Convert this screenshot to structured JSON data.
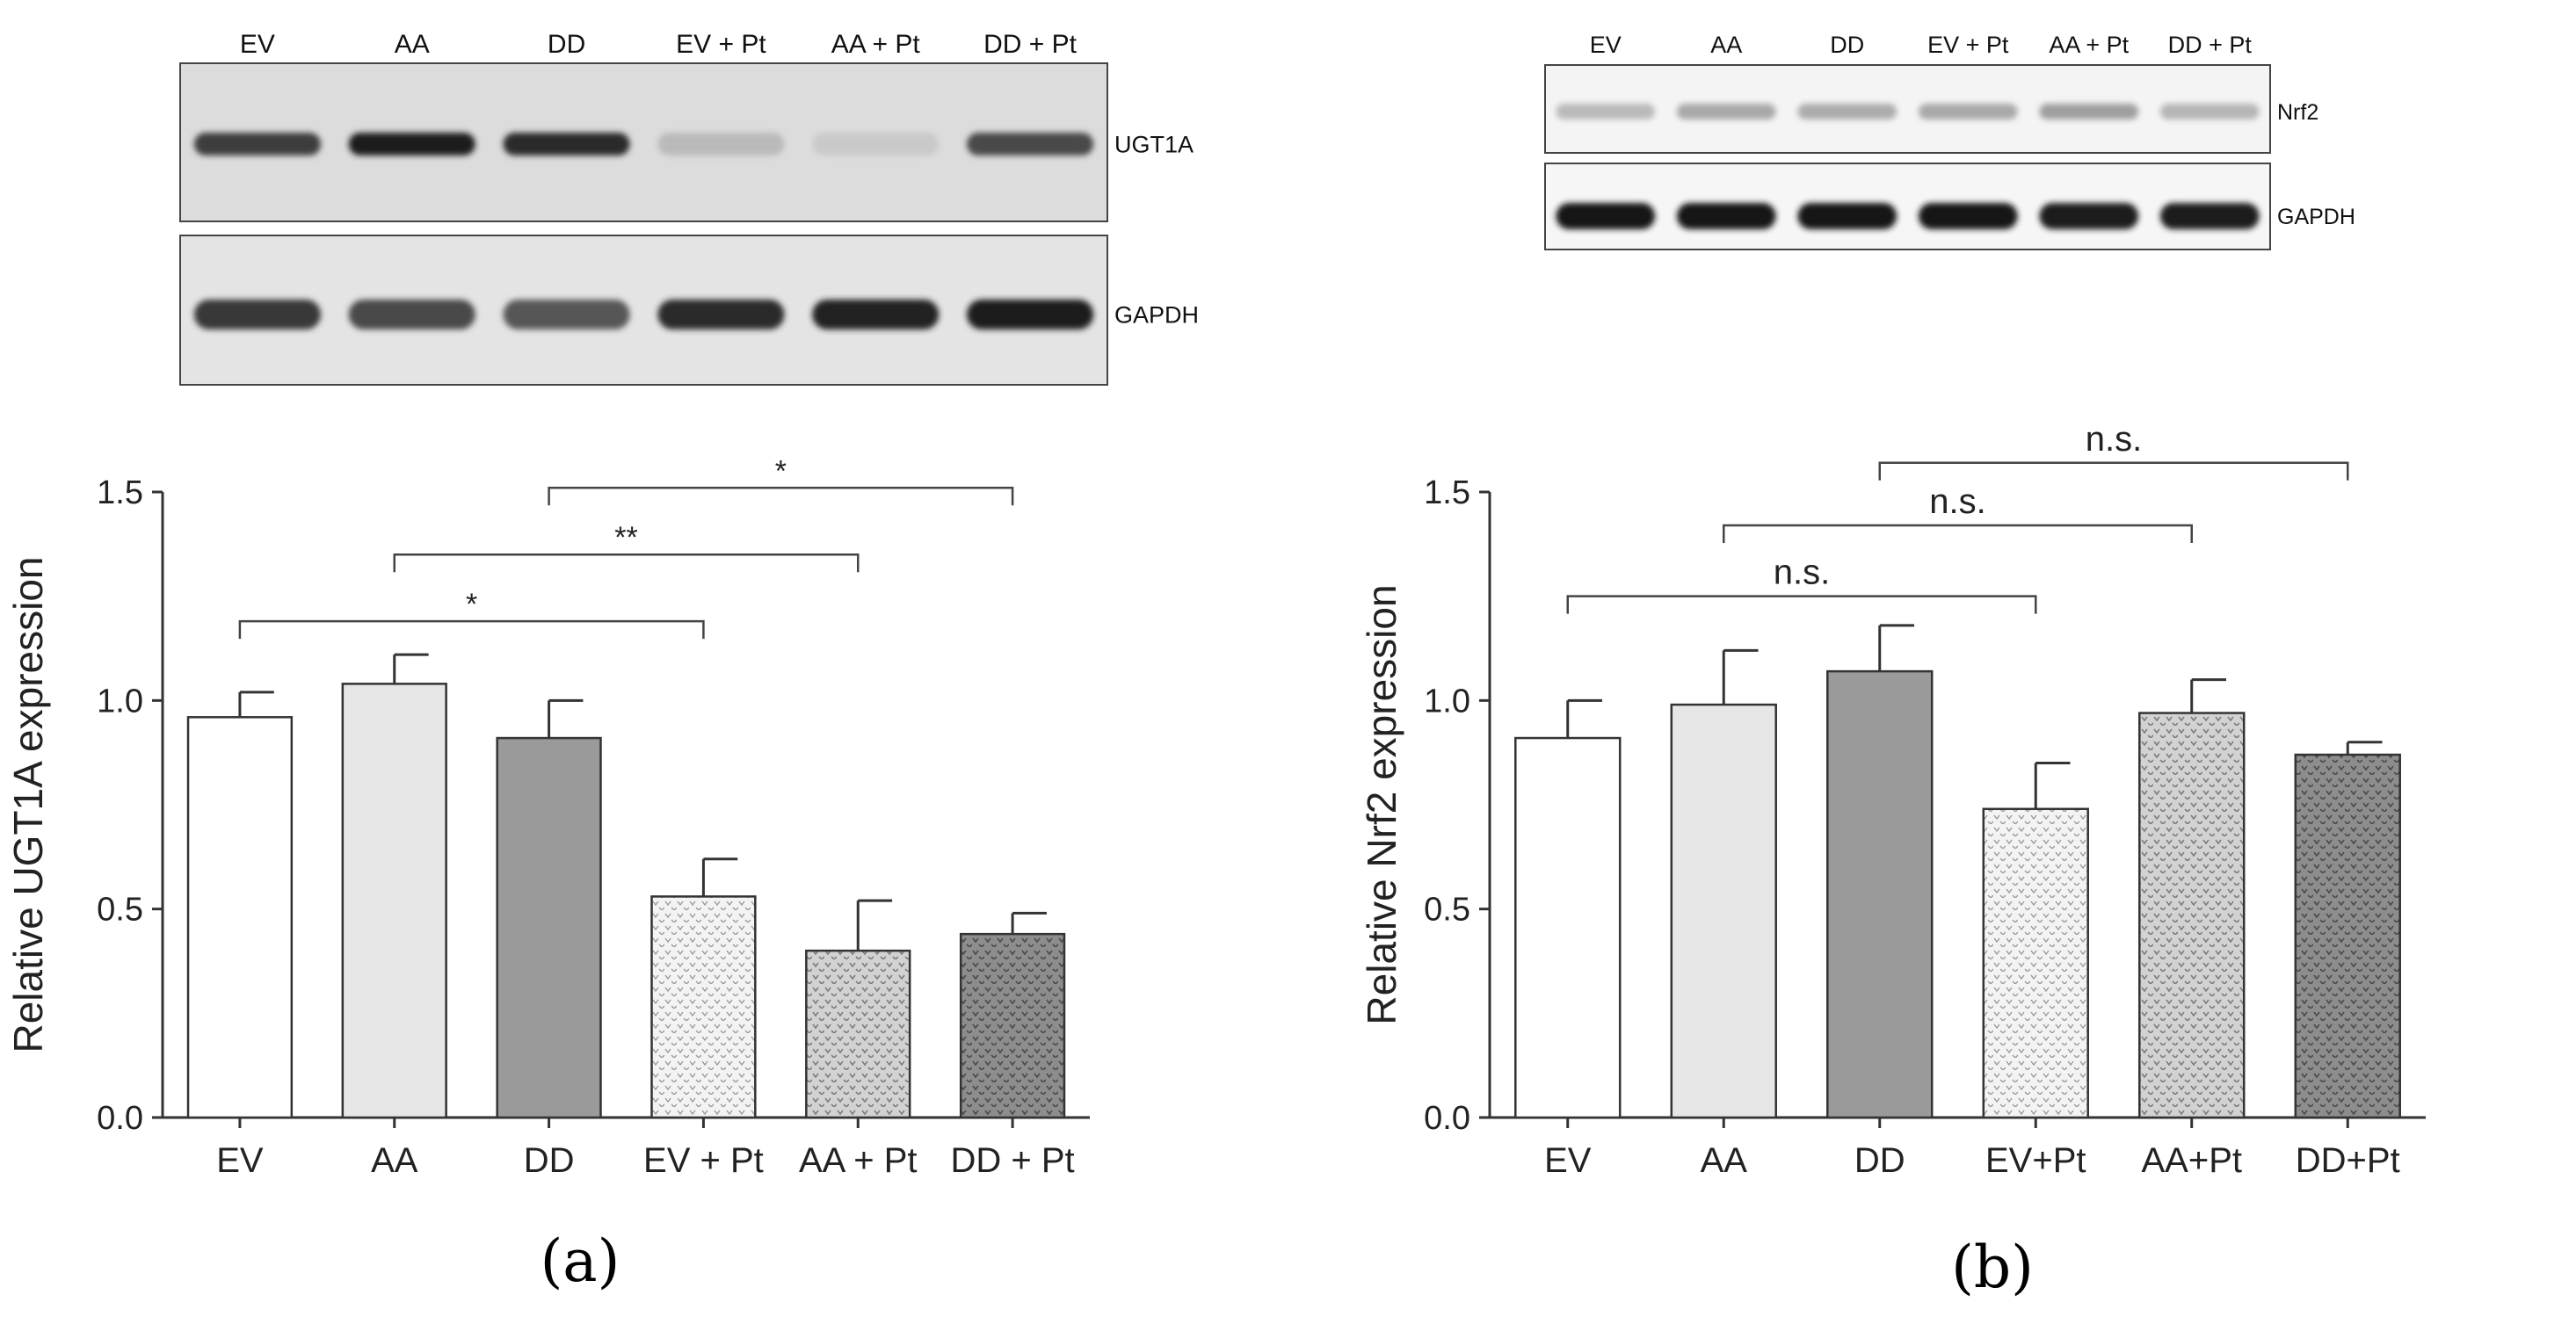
{
  "figure": {
    "panel_a_label": "(a)",
    "panel_b_label": "(b)"
  },
  "blots": {
    "a": {
      "lanes": [
        "EV",
        "AA",
        "DD",
        "EV + Pt",
        "AA + Pt",
        "DD + Pt"
      ],
      "strips": [
        {
          "label": "UGT1A",
          "intensity": [
            0.78,
            0.92,
            0.85,
            0.22,
            0.15,
            0.72
          ]
        },
        {
          "label": "GAPDH",
          "intensity": [
            0.8,
            0.72,
            0.66,
            0.86,
            0.9,
            0.92
          ]
        }
      ]
    },
    "b": {
      "lanes": [
        "EV",
        "AA",
        "DD",
        "EV + Pt",
        "AA + Pt",
        "DD + Pt"
      ],
      "strips": [
        {
          "label": "Nrf2",
          "intensity": [
            0.22,
            0.3,
            0.28,
            0.3,
            0.34,
            0.24
          ]
        },
        {
          "label": "GAPDH",
          "intensity": [
            0.95,
            0.95,
            0.95,
            0.95,
            0.93,
            0.92
          ]
        }
      ]
    }
  },
  "chart_data": [
    {
      "type": "bar",
      "panel": "a",
      "categories": [
        "EV",
        "AA",
        "DD",
        "EV + Pt",
        "AA + Pt",
        "DD + Pt"
      ],
      "values": [
        0.96,
        1.04,
        0.91,
        0.53,
        0.4,
        0.44
      ],
      "errors": [
        0.06,
        0.07,
        0.09,
        0.09,
        0.12,
        0.05
      ],
      "bar_fill": [
        "white",
        "light-gray",
        "gray",
        "dotted-light",
        "dotted-medium",
        "dotted-dark"
      ],
      "ylabel": "Relative UGT1A expression",
      "ylim": [
        0.0,
        1.5
      ],
      "yticks": [
        "0.0",
        "0.5",
        "1.0",
        "1.5"
      ],
      "grid": false,
      "significance": [
        {
          "from": 0,
          "to": 3,
          "label": "*",
          "y": 1.19
        },
        {
          "from": 1,
          "to": 4,
          "label": "**",
          "y": 1.35
        },
        {
          "from": 2,
          "to": 5,
          "label": "*",
          "y": 1.51
        }
      ]
    },
    {
      "type": "bar",
      "panel": "b",
      "categories": [
        "EV",
        "AA",
        "DD",
        "EV+Pt",
        "AA+Pt",
        "DD+Pt"
      ],
      "values": [
        0.91,
        0.99,
        1.07,
        0.74,
        0.97,
        0.87
      ],
      "errors": [
        0.09,
        0.13,
        0.11,
        0.11,
        0.08,
        0.03
      ],
      "bar_fill": [
        "white",
        "light-gray",
        "gray",
        "dotted-light",
        "dotted-medium",
        "dotted-dark"
      ],
      "ylabel": "Relative Nrf2 expression",
      "ylim": [
        0.0,
        1.5
      ],
      "yticks": [
        "0.0",
        "0.5",
        "1.0",
        "1.5"
      ],
      "grid": false,
      "significance": [
        {
          "from": 0,
          "to": 3,
          "label": "n.s.",
          "y": 1.25
        },
        {
          "from": 1,
          "to": 4,
          "label": "n.s.",
          "y": 1.42
        },
        {
          "from": 2,
          "to": 5,
          "label": "n.s.",
          "y": 1.57
        }
      ]
    }
  ]
}
